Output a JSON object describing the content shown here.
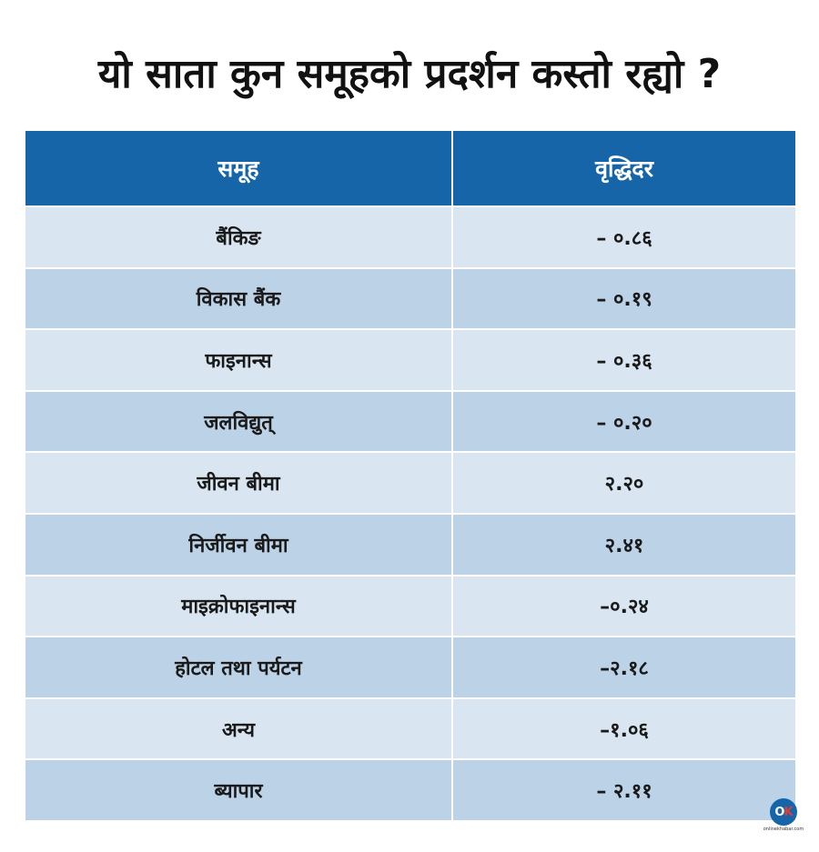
{
  "title": "यो साता कुन समूहको प्रदर्शन कस्तो रह्यो ?",
  "table": {
    "headers": [
      "समूह",
      "वृद्धिदर"
    ],
    "rows": [
      {
        "group": "बैंकिङ",
        "rate": "– ०.८६"
      },
      {
        "group": "विकास बैंक",
        "rate": "– ०.१९"
      },
      {
        "group": "फाइनान्स",
        "rate": "– ०.३६"
      },
      {
        "group": "जलविद्युत्",
        "rate": "– ०.२०"
      },
      {
        "group": "जीवन बीमा",
        "rate": "२.२०"
      },
      {
        "group": "निर्जीवन बीमा",
        "rate": "२.४१"
      },
      {
        "group": "माइक्रोफाइनान्स",
        "rate": "–०.२४"
      },
      {
        "group": "होटल तथा पर्यटन",
        "rate": "–२.१८"
      },
      {
        "group": "अन्य",
        "rate": "–१.०६"
      },
      {
        "group": "ब्यापार",
        "rate": "– २.११"
      }
    ]
  },
  "logo": {
    "mark_o": "O",
    "mark_k": "K",
    "text": "onlinekhabar.com"
  },
  "colors": {
    "header_bg": "#1565a8",
    "row_light": "#d9e6f2",
    "row_dark": "#bcd2e6"
  }
}
